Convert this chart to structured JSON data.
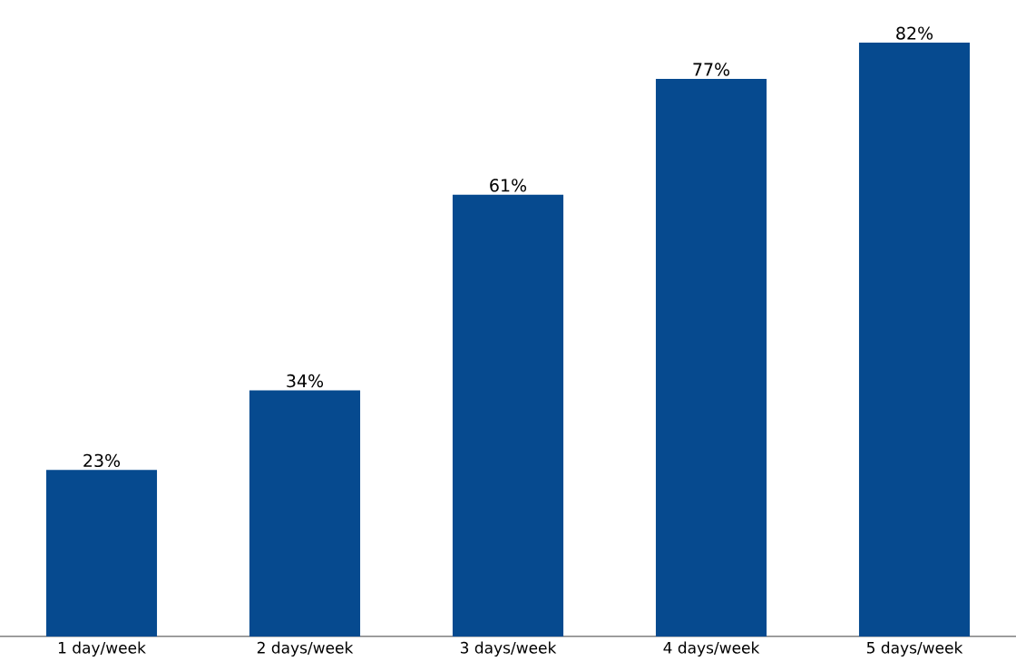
{
  "chart_data": {
    "type": "bar",
    "categories": [
      "1 day/week",
      "2 days/week",
      "3 days/week",
      "4 days/week",
      "5 days/week"
    ],
    "values": [
      23,
      34,
      61,
      77,
      82
    ],
    "value_labels": [
      "23%",
      "34%",
      "61%",
      "77%",
      "82%"
    ],
    "color": "#064a8f",
    "grid": false
  }
}
